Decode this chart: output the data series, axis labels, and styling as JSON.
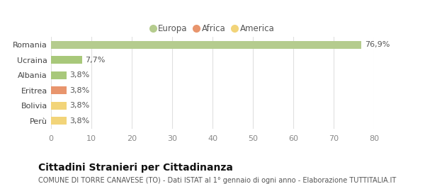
{
  "categories": [
    "Perù",
    "Bolivia",
    "Eritrea",
    "Albania",
    "Ucraina",
    "Romania"
  ],
  "values": [
    3.8,
    3.8,
    3.8,
    3.8,
    7.7,
    76.9
  ],
  "labels": [
    "3,8%",
    "3,8%",
    "3,8%",
    "3,8%",
    "7,7%",
    "76,9%"
  ],
  "colors": [
    "#f2d479",
    "#f2d479",
    "#e8956d",
    "#a8c87a",
    "#a8c87a",
    "#b5cc8e"
  ],
  "legend_items": [
    {
      "label": "Europa",
      "color": "#b5cc8e"
    },
    {
      "label": "Africa",
      "color": "#e8956d"
    },
    {
      "label": "America",
      "color": "#f2d479"
    }
  ],
  "xlim": [
    0,
    80
  ],
  "xticks": [
    0,
    10,
    20,
    30,
    40,
    50,
    60,
    70,
    80
  ],
  "title": "Cittadini Stranieri per Cittadinanza",
  "subtitle": "COMUNE DI TORRE CANAVESE (TO) - Dati ISTAT al 1° gennaio di ogni anno - Elaborazione TUTTITALIA.IT",
  "background_color": "#ffffff",
  "bar_height": 0.5,
  "title_fontsize": 10,
  "subtitle_fontsize": 7,
  "label_fontsize": 8,
  "tick_fontsize": 8,
  "legend_fontsize": 8.5
}
